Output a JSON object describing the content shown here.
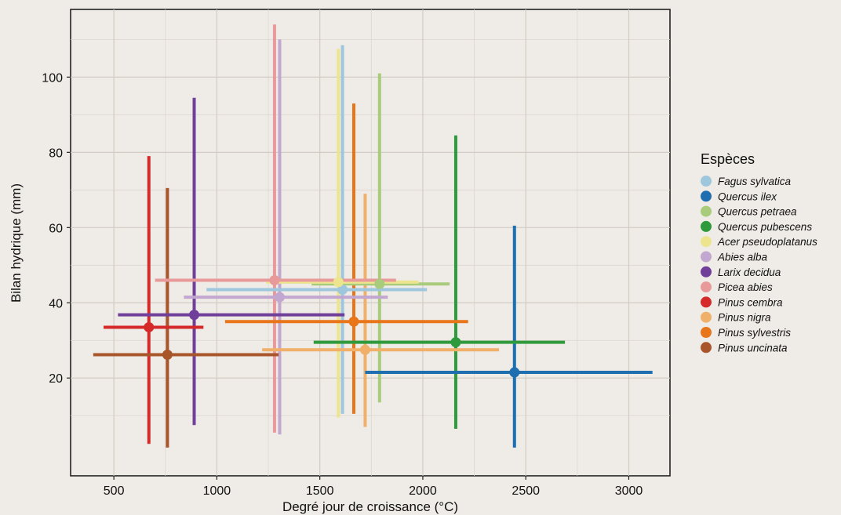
{
  "chart_data": {
    "type": "scatter",
    "title": "",
    "xlabel": "Degré jour de croissance (°C)",
    "ylabel": "Bilan hydrique (mm)",
    "xlim": [
      290,
      3200
    ],
    "ylim": [
      -6,
      118
    ],
    "x_ticks": [
      500,
      1000,
      1500,
      2000,
      2500,
      3000
    ],
    "y_ticks": [
      20,
      40,
      60,
      80,
      100
    ],
    "x_tick_labels": [
      "500",
      "1000",
      "1500",
      "2000",
      "2500",
      "3000"
    ],
    "y_tick_labels": [
      "20",
      "40",
      "60",
      "80",
      "100"
    ],
    "grid": true,
    "legend_title": "Espèces",
    "legend_position": "right",
    "series": [
      {
        "name": "Fagus sylvatica",
        "color": "#9ec6dc",
        "x": 1610,
        "y": 43.5,
        "x_range": [
          950,
          2020
        ],
        "y_range": [
          10.5,
          108.5
        ]
      },
      {
        "name": "Quercus ilex",
        "color": "#1f6fb0",
        "x": 2445,
        "y": 21.5,
        "x_range": [
          1720,
          3115
        ],
        "y_range": [
          1.5,
          60.5
        ]
      },
      {
        "name": "Quercus petraea",
        "color": "#a8cc7c",
        "x": 1790,
        "y": 45.0,
        "x_range": [
          1460,
          2130
        ],
        "y_range": [
          13.5,
          101.0
        ]
      },
      {
        "name": "Quercus pubescens",
        "color": "#2e9a3c",
        "x": 2160,
        "y": 29.5,
        "x_range": [
          1470,
          2690
        ],
        "y_range": [
          6.5,
          84.5
        ]
      },
      {
        "name": "Acer pseudoplatanus",
        "color": "#ece58e",
        "x": 1590,
        "y": 45.5,
        "x_range": [
          1240,
          1980
        ],
        "y_range": [
          9.5,
          107.5
        ]
      },
      {
        "name": "Abies alba",
        "color": "#c2a8d0",
        "x": 1305,
        "y": 41.5,
        "x_range": [
          840,
          1830
        ],
        "y_range": [
          5.0,
          110.0
        ]
      },
      {
        "name": "Larix decidua",
        "color": "#6f3f9a",
        "x": 890,
        "y": 36.8,
        "x_range": [
          520,
          1620
        ],
        "y_range": [
          7.5,
          94.5
        ]
      },
      {
        "name": "Picea abies",
        "color": "#e89a9a",
        "x": 1280,
        "y": 46.0,
        "x_range": [
          700,
          1870
        ],
        "y_range": [
          5.5,
          114.0
        ]
      },
      {
        "name": "Pinus cembra",
        "color": "#d42a2a",
        "x": 670,
        "y": 33.5,
        "x_range": [
          450,
          935
        ],
        "y_range": [
          2.5,
          79.0
        ]
      },
      {
        "name": "Pinus nigra",
        "color": "#f0b06a",
        "x": 1720,
        "y": 27.5,
        "x_range": [
          1220,
          2370
        ],
        "y_range": [
          7.0,
          69.0
        ]
      },
      {
        "name": "Pinus sylvestris",
        "color": "#e8751a",
        "x": 1665,
        "y": 35.0,
        "x_range": [
          1040,
          2220
        ],
        "y_range": [
          10.5,
          93.0
        ]
      },
      {
        "name": "Pinus uncinata",
        "color": "#a8552a",
        "x": 760,
        "y": 26.2,
        "x_range": [
          400,
          1300
        ],
        "y_range": [
          1.5,
          70.5
        ]
      }
    ]
  }
}
